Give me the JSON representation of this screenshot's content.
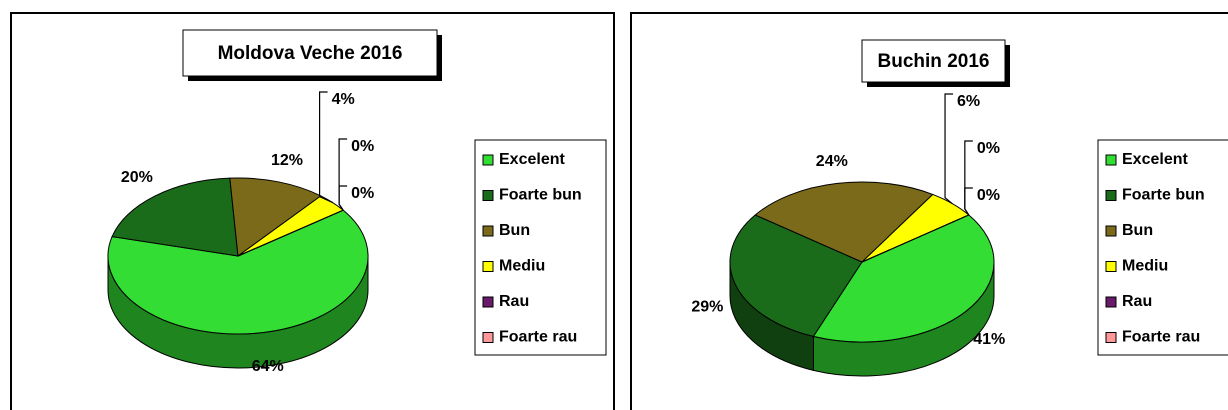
{
  "chart_data": [
    {
      "type": "pie",
      "title": "Moldova Veche 2016",
      "categories": [
        "Excelent",
        "Foarte bun",
        "Bun",
        "Mediu",
        "Rau",
        "Foarte rau"
      ],
      "values": [
        64,
        20,
        12,
        4,
        0,
        0
      ],
      "value_labels": [
        "64%",
        "20%",
        "12%",
        "4%",
        "0%",
        "0%"
      ],
      "colors": [
        "#33dd33",
        "#1a6b1a",
        "#7a6a1a",
        "#ffff00",
        "#6a1a6a",
        "#ff9999"
      ],
      "legend": "right"
    },
    {
      "type": "pie",
      "title": "Buchin 2016",
      "categories": [
        "Excelent",
        "Foarte bun",
        "Bun",
        "Mediu",
        "Rau",
        "Foarte rau"
      ],
      "values": [
        41,
        29,
        24,
        6,
        0,
        0
      ],
      "value_labels": [
        "41%",
        "29%",
        "24%",
        "6%",
        "0%",
        "0%"
      ],
      "colors": [
        "#33dd33",
        "#1a6b1a",
        "#7a6a1a",
        "#ffff00",
        "#6a1a6a",
        "#ff9999"
      ],
      "legend": "right"
    }
  ]
}
